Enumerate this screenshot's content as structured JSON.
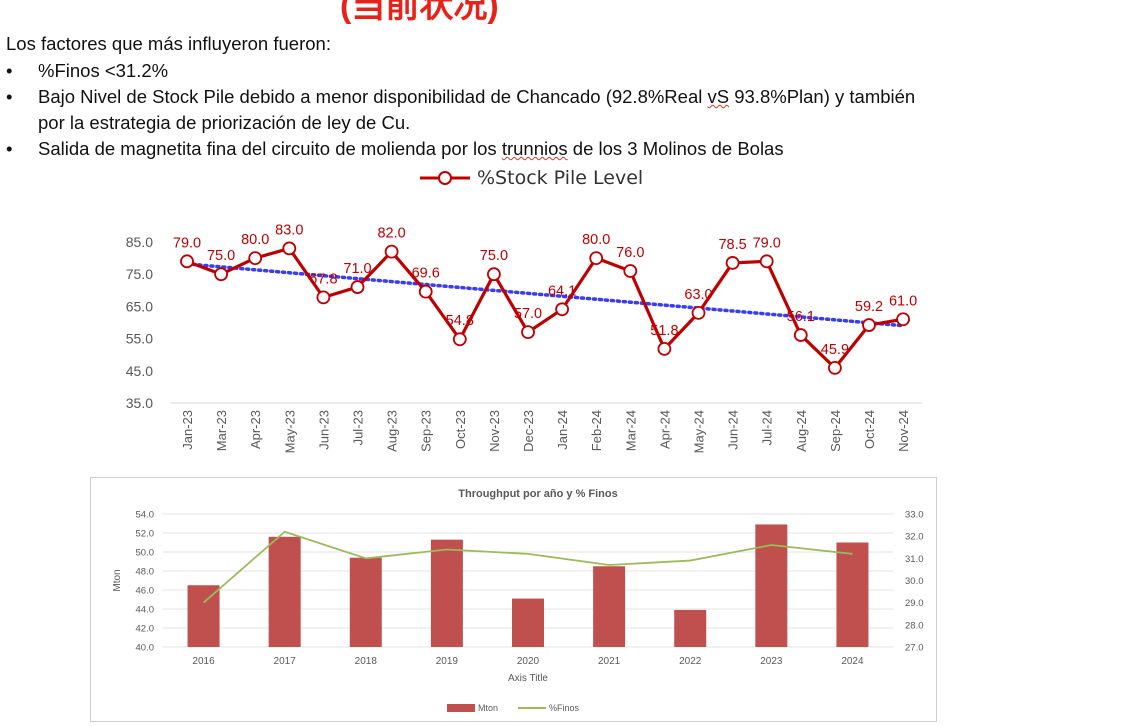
{
  "header": {
    "title_partial": "(当前状况)"
  },
  "intro": "Los factores que más influyeron  fueron:",
  "bullets": [
    {
      "bullet": "•",
      "text": "%Finos <31.2%"
    },
    {
      "bullet": "•",
      "text_a": "Bajo Nivel de Stock Pile debido a menor disponibilidad de Chancado (92.8%Real ",
      "text_squig": "vS",
      "text_b": " 93.8%Plan) y también",
      "text_line2": "por la estrategia de priorización de ley de Cu."
    },
    {
      "bullet": "•",
      "text_a": "Salida de magnetita fina del circuito de molienda por los ",
      "text_squig": "trunnios",
      "text_b": " de los 3 Molinos de Bolas"
    }
  ],
  "chart_data": [
    {
      "type": "line",
      "title": "%Stock Pile Level",
      "legend": "top-center",
      "categories": [
        "Jan-23",
        "Mar-23",
        "Apr-23",
        "May-23",
        "Jun-23",
        "Jul-23",
        "Aug-23",
        "Sep-23",
        "Oct-23",
        "Nov-23",
        "Dec-23",
        "Jan-24",
        "Feb-24",
        "Mar-24",
        "Apr-24",
        "May-24",
        "Jun-24",
        "Jul-24",
        "Aug-24",
        "Sep-24",
        "Oct-24",
        "Nov-24"
      ],
      "series": [
        {
          "name": "%Stock Pile Level",
          "color": "#c00000",
          "values": [
            79.0,
            75.0,
            80.0,
            83.0,
            67.8,
            71.0,
            82.0,
            69.6,
            54.8,
            75.0,
            57.0,
            64.1,
            80.0,
            76.0,
            51.8,
            63.0,
            78.5,
            79.0,
            56.1,
            45.9,
            59.2,
            61.0
          ],
          "labels": [
            "79.0",
            "75.0",
            "80.0",
            "83.0",
            "67.8",
            "71.0",
            "82.0",
            "69.6",
            "54.8",
            "75.0",
            "57.0",
            "64.1",
            "80.0",
            "76.0",
            "51.8",
            "63.0",
            "78.5",
            "79.0",
            "56.1",
            "45.9",
            "59.2",
            "61.0"
          ]
        }
      ],
      "trendline": {
        "color": "#3b3bef",
        "start": 78.2,
        "end": 59.0
      },
      "yticks": [
        "85.0",
        "75.0",
        "65.0",
        "55.0",
        "45.0",
        "35.0"
      ],
      "ylim": [
        35,
        85
      ],
      "grid": false
    },
    {
      "type": "bar",
      "title": "Throughput por año y % Finos",
      "xlabel": "Axis Title",
      "ylabel": "Mton",
      "categories": [
        "2016",
        "2017",
        "2018",
        "2019",
        "2020",
        "2021",
        "2022",
        "2023",
        "2024"
      ],
      "series": [
        {
          "name": "Mton",
          "type": "bar",
          "axis": "left",
          "color": "#c0504d",
          "values": [
            46.5,
            51.6,
            49.4,
            51.3,
            45.1,
            48.5,
            43.9,
            52.9,
            51.0
          ]
        },
        {
          "name": "%Finos",
          "type": "line",
          "axis": "right",
          "color": "#9bbb59",
          "values": [
            29.0,
            32.2,
            31.0,
            31.4,
            31.2,
            30.7,
            30.9,
            31.6,
            31.2
          ]
        }
      ],
      "ylim": [
        40,
        54
      ],
      "y2lim": [
        27,
        33
      ],
      "yticks": [
        "54.0",
        "52.0",
        "50.0",
        "48.0",
        "46.0",
        "44.0",
        "42.0",
        "40.0"
      ],
      "y2ticks": [
        "33.0",
        "32.0",
        "31.0",
        "30.0",
        "29.0",
        "28.0",
        "27.0"
      ],
      "legend": "bottom-center",
      "grid": true
    }
  ]
}
